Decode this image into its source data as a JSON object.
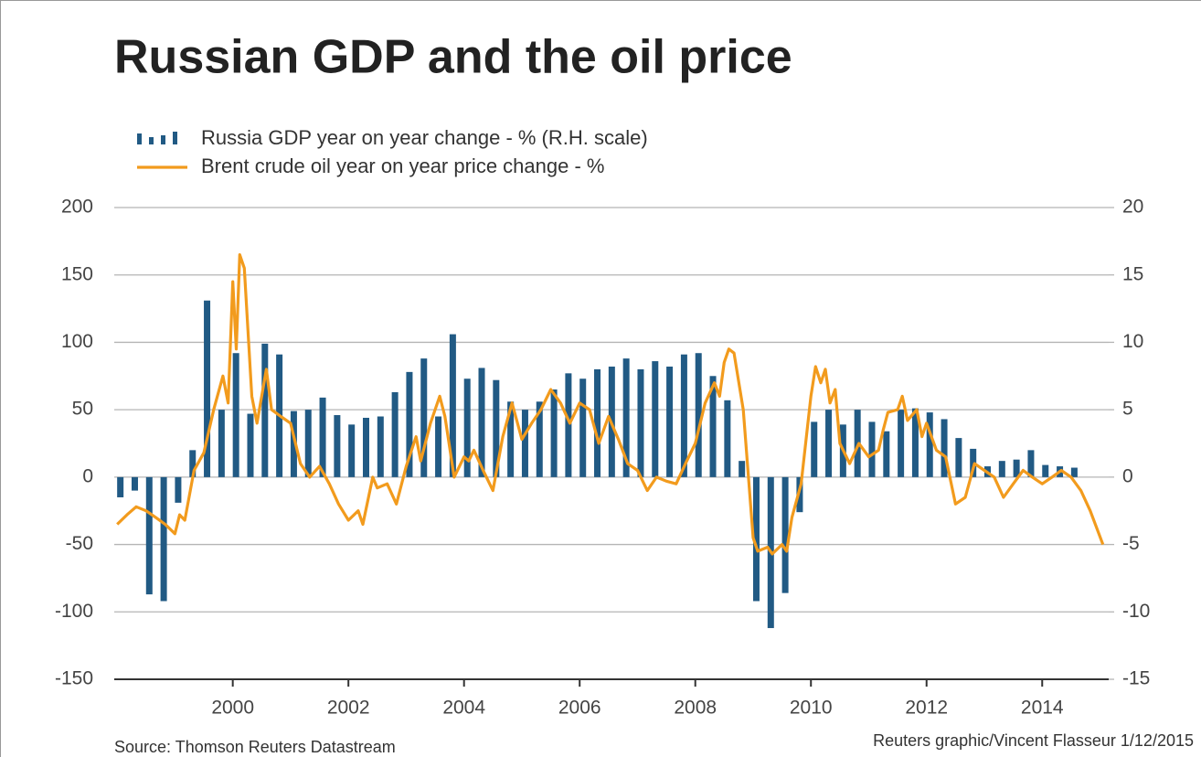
{
  "chart_data": {
    "type": "combo",
    "title": "Russian GDP and the oil price",
    "source": "Source: Thomson Reuters Datastream",
    "credit": "Reuters graphic/Vincent Flasseur 1/12/2015",
    "xlim": [
      1997.95,
      2015.15
    ],
    "xticks": [
      2000,
      2002,
      2004,
      2006,
      2008,
      2010,
      2012,
      2014
    ],
    "ylim": [
      -150,
      200
    ],
    "yticks": [
      -150,
      -100,
      -50,
      0,
      50,
      100,
      150,
      200
    ],
    "y2lim": [
      -15,
      20
    ],
    "y2ticks": [
      -15,
      -10,
      -5,
      0,
      5,
      10,
      15,
      20
    ],
    "grid": true,
    "series": [
      {
        "name": "Russia GDP year on year change - % (R.H. scale)",
        "type": "bar",
        "axis": "y2",
        "color": "#215a84",
        "x": [
          1998,
          1998.25,
          1998.5,
          1998.75,
          1999,
          1999.25,
          1999.5,
          1999.75,
          2000,
          2000.25,
          2000.5,
          2000.75,
          2001,
          2001.25,
          2001.5,
          2001.75,
          2002,
          2002.25,
          2002.5,
          2002.75,
          2003,
          2003.25,
          2003.5,
          2003.75,
          2004,
          2004.25,
          2004.5,
          2004.75,
          2005,
          2005.25,
          2005.5,
          2005.75,
          2006,
          2006.25,
          2006.5,
          2006.75,
          2007,
          2007.25,
          2007.5,
          2007.75,
          2008,
          2008.25,
          2008.5,
          2008.75,
          2009,
          2009.25,
          2009.5,
          2009.75,
          2010,
          2010.25,
          2010.5,
          2010.75,
          2011,
          2011.25,
          2011.5,
          2011.75,
          2012,
          2012.25,
          2012.5,
          2012.75,
          2013,
          2013.25,
          2013.5,
          2013.75,
          2014,
          2014.25,
          2014.5
        ],
        "values": [
          -1.5,
          -1,
          -8.7,
          -9.2,
          -1.9,
          2,
          13.1,
          5,
          9.2,
          4.7,
          9.9,
          9.1,
          4.9,
          5,
          5.9,
          4.6,
          3.9,
          4.4,
          4.5,
          6.3,
          7.8,
          8.8,
          4.5,
          10.6,
          7.3,
          8.1,
          7.2,
          5.6,
          5,
          5.6,
          6.5,
          7.7,
          7.3,
          8,
          8.2,
          8.8,
          8,
          8.6,
          8.2,
          9.1,
          9.2,
          7.5,
          5.7,
          1.2,
          -9.2,
          -11.2,
          -8.6,
          -2.6,
          4.1,
          5,
          3.9,
          5,
          4.1,
          3.4,
          5,
          5.1,
          4.8,
          4.3,
          2.9,
          2.1,
          0.8,
          1.2,
          1.3,
          2,
          0.9,
          0.8,
          0.7
        ]
      },
      {
        "name": "Brent crude oil year on year price change - %",
        "type": "line",
        "axis": "y",
        "color": "#f29b1d",
        "x": [
          1998,
          1998.17,
          1998.33,
          1998.5,
          1998.67,
          1998.83,
          1999,
          1999.08,
          1999.17,
          1999.33,
          1999.5,
          1999.67,
          1999.83,
          1999.92,
          2000,
          2000.06,
          2000.12,
          2000.2,
          2000.33,
          2000.42,
          2000.58,
          2000.67,
          2000.83,
          2001,
          2001.17,
          2001.33,
          2001.5,
          2001.67,
          2001.83,
          2002,
          2002.17,
          2002.25,
          2002.42,
          2002.5,
          2002.67,
          2002.83,
          2003,
          2003.17,
          2003.25,
          2003.42,
          2003.58,
          2003.67,
          2003.83,
          2004,
          2004.08,
          2004.17,
          2004.33,
          2004.5,
          2004.67,
          2004.83,
          2005,
          2005.17,
          2005.33,
          2005.5,
          2005.67,
          2005.83,
          2006,
          2006.17,
          2006.33,
          2006.5,
          2006.67,
          2006.83,
          2007,
          2007.17,
          2007.33,
          2007.5,
          2007.67,
          2007.83,
          2008,
          2008.17,
          2008.33,
          2008.42,
          2008.5,
          2008.58,
          2008.67,
          2008.83,
          2009,
          2009.08,
          2009.25,
          2009.33,
          2009.5,
          2009.58,
          2009.67,
          2009.83,
          2010,
          2010.08,
          2010.17,
          2010.25,
          2010.33,
          2010.42,
          2010.5,
          2010.67,
          2010.83,
          2011,
          2011.17,
          2011.25,
          2011.33,
          2011.5,
          2011.58,
          2011.67,
          2011.83,
          2011.92,
          2012,
          2012.17,
          2012.33,
          2012.5,
          2012.67,
          2012.83,
          2013,
          2013.17,
          2013.33,
          2013.5,
          2013.67,
          2013.83,
          2014,
          2014.17,
          2014.33,
          2014.5,
          2014.67,
          2014.83,
          2015.05
        ],
        "values": [
          -35,
          -28,
          -22,
          -25,
          -30,
          -35,
          -42,
          -28,
          -32,
          5,
          18,
          50,
          75,
          55,
          145,
          95,
          165,
          155,
          60,
          40,
          80,
          50,
          45,
          40,
          10,
          0,
          8,
          -5,
          -20,
          -32,
          -25,
          -35,
          0,
          -8,
          -5,
          -20,
          8,
          30,
          12,
          40,
          60,
          45,
          0,
          15,
          12,
          20,
          5,
          -10,
          30,
          55,
          28,
          40,
          50,
          65,
          55,
          40,
          55,
          50,
          25,
          45,
          28,
          10,
          5,
          -10,
          0,
          -3,
          -5,
          10,
          25,
          55,
          70,
          60,
          85,
          95,
          92,
          50,
          -45,
          -55,
          -52,
          -57,
          -50,
          -55,
          -30,
          -5,
          60,
          82,
          70,
          80,
          55,
          65,
          25,
          10,
          25,
          15,
          20,
          35,
          48,
          50,
          60,
          42,
          50,
          30,
          40,
          20,
          15,
          -20,
          -15,
          10,
          5,
          0,
          -15,
          -5,
          5,
          0,
          -5,
          0,
          5,
          0,
          -10,
          -25,
          -50
        ]
      }
    ]
  }
}
